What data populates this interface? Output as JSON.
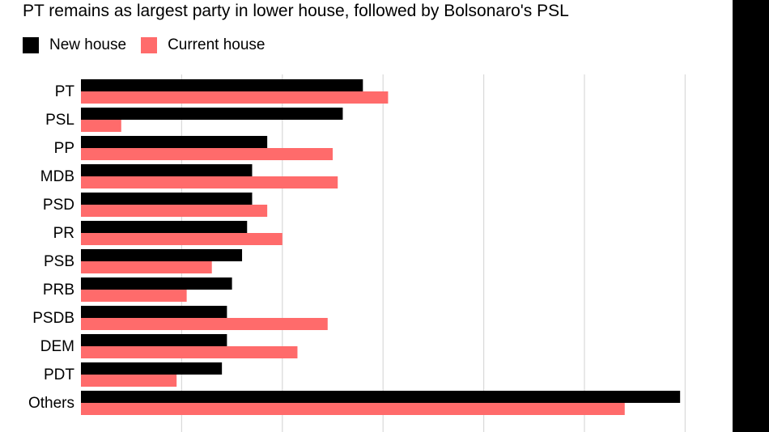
{
  "title": "PT remains as largest party in lower house, followed by Bolsonaro's PSL",
  "colors": {
    "new_house": "#000000",
    "current_house": "#ff6b6b",
    "grid": "#d9d9d9"
  },
  "legend": {
    "new_house": "New house",
    "current_house": "Current house"
  },
  "chart_data": {
    "type": "bar",
    "orientation": "horizontal",
    "title": "PT remains as largest party in lower house, followed by Bolsonaro's PSL",
    "categories": [
      "PT",
      "PSL",
      "PP",
      "MDB",
      "PSD",
      "PR",
      "PSB",
      "PRB",
      "PSDB",
      "DEM",
      "PDT",
      "Others"
    ],
    "series": [
      {
        "name": "New house",
        "values": [
          56,
          52,
          37,
          34,
          34,
          33,
          32,
          30,
          29,
          29,
          28,
          119
        ]
      },
      {
        "name": "Current house",
        "values": [
          61,
          8,
          50,
          51,
          37,
          40,
          26,
          21,
          49,
          43,
          19,
          108
        ]
      }
    ],
    "xlim": [
      0,
      120
    ],
    "xticks": [
      0,
      20,
      40,
      60,
      80,
      100,
      120
    ],
    "grid": true,
    "legend_position": "top-left"
  }
}
